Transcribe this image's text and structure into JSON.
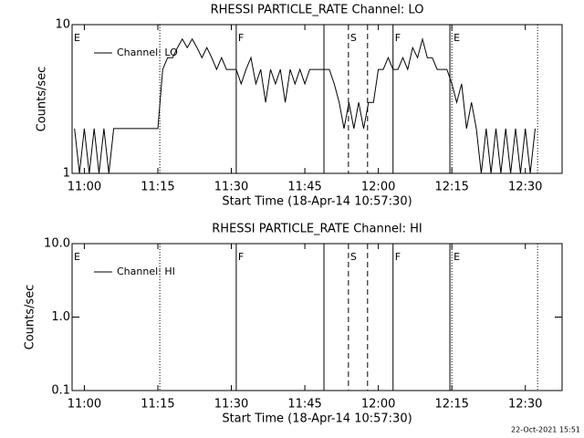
{
  "chart_data": [
    {
      "type": "line",
      "title": "RHESSI PARTICLE_RATE Channel: LO",
      "xlabel": "Start Time (18-Apr-14 10:57:30)",
      "ylabel": "Counts/sec",
      "xlim": [
        657.5,
        757.5
      ],
      "xticks": [
        {
          "value": 660,
          "label": "11:00"
        },
        {
          "value": 675,
          "label": "11:15"
        },
        {
          "value": 690,
          "label": "11:30"
        },
        {
          "value": 705,
          "label": "11:45"
        },
        {
          "value": 720,
          "label": "12:00"
        },
        {
          "value": 735,
          "label": "12:15"
        },
        {
          "value": 750,
          "label": "12:30"
        }
      ],
      "ylim": [
        1,
        10
      ],
      "yticks": [
        1,
        10
      ],
      "log_y": true,
      "legend": "upper left",
      "events": [
        {
          "x": 675.4,
          "style": "dotted"
        },
        {
          "x": 691.0,
          "style": "solid",
          "label": "F"
        },
        {
          "x": 708.9,
          "style": "solid"
        },
        {
          "x": 713.9,
          "style": "dashed",
          "label": "S"
        },
        {
          "x": 717.8,
          "style": "dashed"
        },
        {
          "x": 723.0,
          "style": "solid",
          "label": "F"
        },
        {
          "x": 734.6,
          "style": "solid"
        },
        {
          "x": 735.0,
          "style": "dotted",
          "label": "E"
        },
        {
          "x": 752.5,
          "style": "dotted"
        },
        {
          "x": 657.5,
          "style": "none",
          "label": "E"
        }
      ],
      "x": [
        658,
        659,
        660,
        661,
        662,
        663,
        664,
        665,
        666,
        667,
        668,
        669,
        670,
        671,
        672,
        673,
        674,
        675,
        676,
        677,
        678,
        679,
        680,
        681,
        682,
        683,
        684,
        685,
        686,
        687,
        688,
        689,
        690,
        691,
        692,
        693,
        694,
        695,
        696,
        697,
        698,
        699,
        700,
        701,
        702,
        703,
        704,
        705,
        706,
        707,
        708,
        709,
        710,
        711,
        712,
        713,
        714,
        715,
        716,
        717,
        718,
        719,
        720,
        721,
        722,
        723,
        724,
        725,
        726,
        727,
        728,
        729,
        730,
        731,
        732,
        733,
        734,
        735,
        736,
        737,
        738,
        739,
        740,
        741,
        742,
        743,
        744,
        745,
        746,
        747,
        748,
        749,
        750,
        751,
        752
      ],
      "series": [
        {
          "name": "Channel: LO",
          "color": "#000000",
          "values": [
            2,
            1,
            2,
            1,
            2,
            1,
            2,
            1,
            2,
            2,
            2,
            2,
            2,
            2,
            2,
            2,
            2,
            2,
            5,
            6,
            6,
            7,
            8,
            7,
            8,
            7,
            6,
            7,
            6,
            5,
            6,
            5,
            5,
            5,
            4,
            5,
            6,
            4,
            5,
            3,
            5,
            4,
            5,
            3,
            5,
            4,
            5,
            4,
            5,
            5,
            5,
            5,
            5,
            4,
            3,
            2,
            3,
            2,
            3,
            2,
            3,
            3,
            5,
            5,
            6,
            5,
            5,
            6,
            5,
            7,
            6,
            8,
            6,
            6,
            5,
            5,
            5,
            4,
            3,
            4,
            2,
            3,
            2,
            1,
            2,
            1,
            2,
            1,
            2,
            1,
            2,
            1,
            2,
            1,
            2
          ]
        }
      ]
    },
    {
      "type": "line",
      "title": "RHESSI PARTICLE_RATE Channel: HI",
      "xlabel": "Start Time (18-Apr-14 10:57:30)",
      "ylabel": "Counts/sec",
      "xlim": [
        657.5,
        757.5
      ],
      "xticks": [
        {
          "value": 660,
          "label": "11:00"
        },
        {
          "value": 675,
          "label": "11:15"
        },
        {
          "value": 690,
          "label": "11:30"
        },
        {
          "value": 705,
          "label": "11:45"
        },
        {
          "value": 720,
          "label": "12:00"
        },
        {
          "value": 735,
          "label": "12:15"
        },
        {
          "value": 750,
          "label": "12:30"
        }
      ],
      "ylim": [
        0.1,
        10
      ],
      "yticks": [
        0.1,
        {
          "value": 1,
          "label": "1.0"
        },
        {
          "value": 10,
          "label": "10.0"
        }
      ],
      "log_y": true,
      "legend": "upper left",
      "events": [
        {
          "x": 675.4,
          "style": "dotted"
        },
        {
          "x": 691.0,
          "style": "solid",
          "label": "F"
        },
        {
          "x": 708.9,
          "style": "solid"
        },
        {
          "x": 713.9,
          "style": "dashed",
          "label": "S"
        },
        {
          "x": 717.8,
          "style": "dashed"
        },
        {
          "x": 723.0,
          "style": "solid",
          "label": "F"
        },
        {
          "x": 734.6,
          "style": "solid"
        },
        {
          "x": 735.0,
          "style": "dotted",
          "label": "E"
        },
        {
          "x": 752.5,
          "style": "dotted"
        },
        {
          "x": 657.5,
          "style": "none",
          "label": "E"
        }
      ],
      "x": [],
      "series": [
        {
          "name": "Channel: HI",
          "color": "#000000",
          "values": []
        }
      ]
    }
  ],
  "footer": "22-Oct-2021 15:51"
}
